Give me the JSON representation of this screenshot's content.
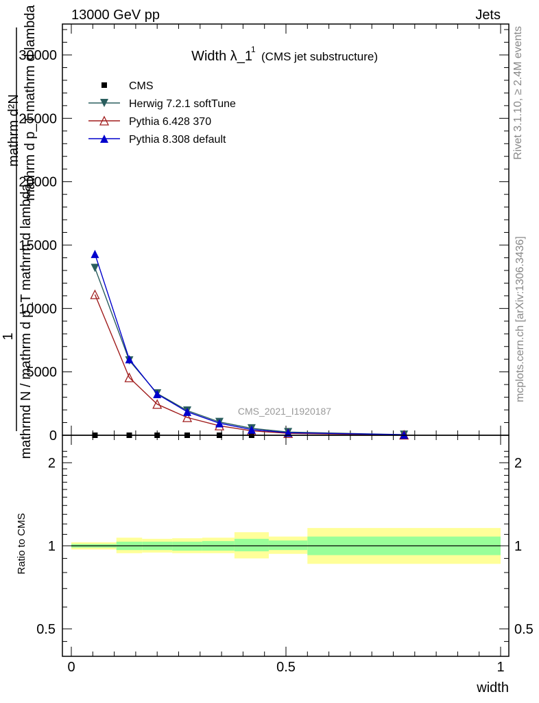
{
  "header": {
    "left": "13000 GeV pp",
    "right": "Jets"
  },
  "side_labels": {
    "rivet": "Rivet 3.1.10, ≥ 2.4M events",
    "mcplots": "mcplots.cern.ch [arXiv:1306.3436]"
  },
  "watermark": "CMS_2021_I1920187",
  "chart_data": [
    {
      "panel": "main",
      "type": "line",
      "title": "Width λ_1",
      "title_superscript": "1",
      "subtitle": "(CMS jet substructure)",
      "ylabel_line1": "mathrm d²N",
      "ylabel_line1b": "mathrm d p_T mathrm d lambda",
      "ylabel_line2": "1",
      "ylabel_line3": "mathrmd N / mathrm d p_T mathrm d lambda",
      "ylim": [
        0,
        32500
      ],
      "y_ticks": [
        0,
        5000,
        10000,
        15000,
        20000,
        25000,
        30000
      ],
      "y_tick_labels": [
        "0",
        "5000",
        "10000",
        "15000",
        "20000",
        "25000",
        "30000"
      ],
      "xlim": [
        0,
        1
      ],
      "legend_position": "top-left",
      "series": [
        {
          "name": "CMS",
          "color": "#000000",
          "marker": "square",
          "x": [
            0.055,
            0.135,
            0.2,
            0.27,
            0.345,
            0.42,
            0.775
          ],
          "y": [
            0,
            0,
            0,
            0,
            0,
            0,
            0
          ]
        },
        {
          "name": "Herwig 7.2.1 softTune",
          "color": "#2a5e5e",
          "marker": "triangle-down",
          "x": [
            0.055,
            0.135,
            0.2,
            0.27,
            0.345,
            0.42,
            0.505,
            0.775
          ],
          "y": [
            13200,
            5900,
            3300,
            1950,
            1050,
            550,
            250,
            50
          ]
        },
        {
          "name": "Pythia 6.428 370",
          "color": "#a01c1c",
          "marker": "triangle-open",
          "x": [
            0.055,
            0.135,
            0.2,
            0.27,
            0.345,
            0.42,
            0.505,
            0.775
          ],
          "y": [
            11100,
            4550,
            2450,
            1400,
            750,
            350,
            150,
            30
          ]
        },
        {
          "name": "Pythia 8.308 default",
          "color": "#0000cc",
          "marker": "triangle-up",
          "x": [
            0.055,
            0.135,
            0.2,
            0.27,
            0.345,
            0.42,
            0.505,
            0.775
          ],
          "y": [
            14300,
            6000,
            3250,
            1850,
            950,
            450,
            200,
            40
          ]
        }
      ]
    },
    {
      "panel": "ratio",
      "type": "area",
      "ylabel": "Ratio to CMS",
      "ylim": [
        0.4,
        2.3
      ],
      "y_ticks": [
        0.5,
        1,
        2
      ],
      "y_tick_labels": [
        "0.5",
        "1",
        "2"
      ],
      "xlim": [
        0,
        1
      ],
      "x_ticks": [
        0,
        0.5,
        1
      ],
      "x_tick_labels": [
        "0",
        "0.5",
        "1"
      ],
      "xlabel": "width",
      "reference_line": 1.0,
      "bins": [
        {
          "x0": 0.0,
          "x1": 0.105,
          "inner": [
            0.985,
            1.015
          ],
          "outer": [
            0.97,
            1.03
          ]
        },
        {
          "x0": 0.105,
          "x1": 0.165,
          "inner": [
            0.965,
            1.035
          ],
          "outer": [
            0.94,
            1.07
          ]
        },
        {
          "x0": 0.165,
          "x1": 0.235,
          "inner": [
            0.965,
            1.035
          ],
          "outer": [
            0.945,
            1.06
          ]
        },
        {
          "x0": 0.235,
          "x1": 0.305,
          "inner": [
            0.96,
            1.035
          ],
          "outer": [
            0.94,
            1.065
          ]
        },
        {
          "x0": 0.305,
          "x1": 0.38,
          "inner": [
            0.96,
            1.04
          ],
          "outer": [
            0.94,
            1.07
          ]
        },
        {
          "x0": 0.38,
          "x1": 0.46,
          "inner": [
            0.955,
            1.06
          ],
          "outer": [
            0.9,
            1.12
          ]
        },
        {
          "x0": 0.46,
          "x1": 0.55,
          "inner": [
            0.965,
            1.045
          ],
          "outer": [
            0.935,
            1.08
          ]
        },
        {
          "x0": 0.55,
          "x1": 1.0,
          "inner": [
            0.925,
            1.08
          ],
          "outer": [
            0.86,
            1.16
          ]
        }
      ],
      "colors": {
        "inner": "#99ff99",
        "outer": "#ffff99"
      }
    }
  ]
}
